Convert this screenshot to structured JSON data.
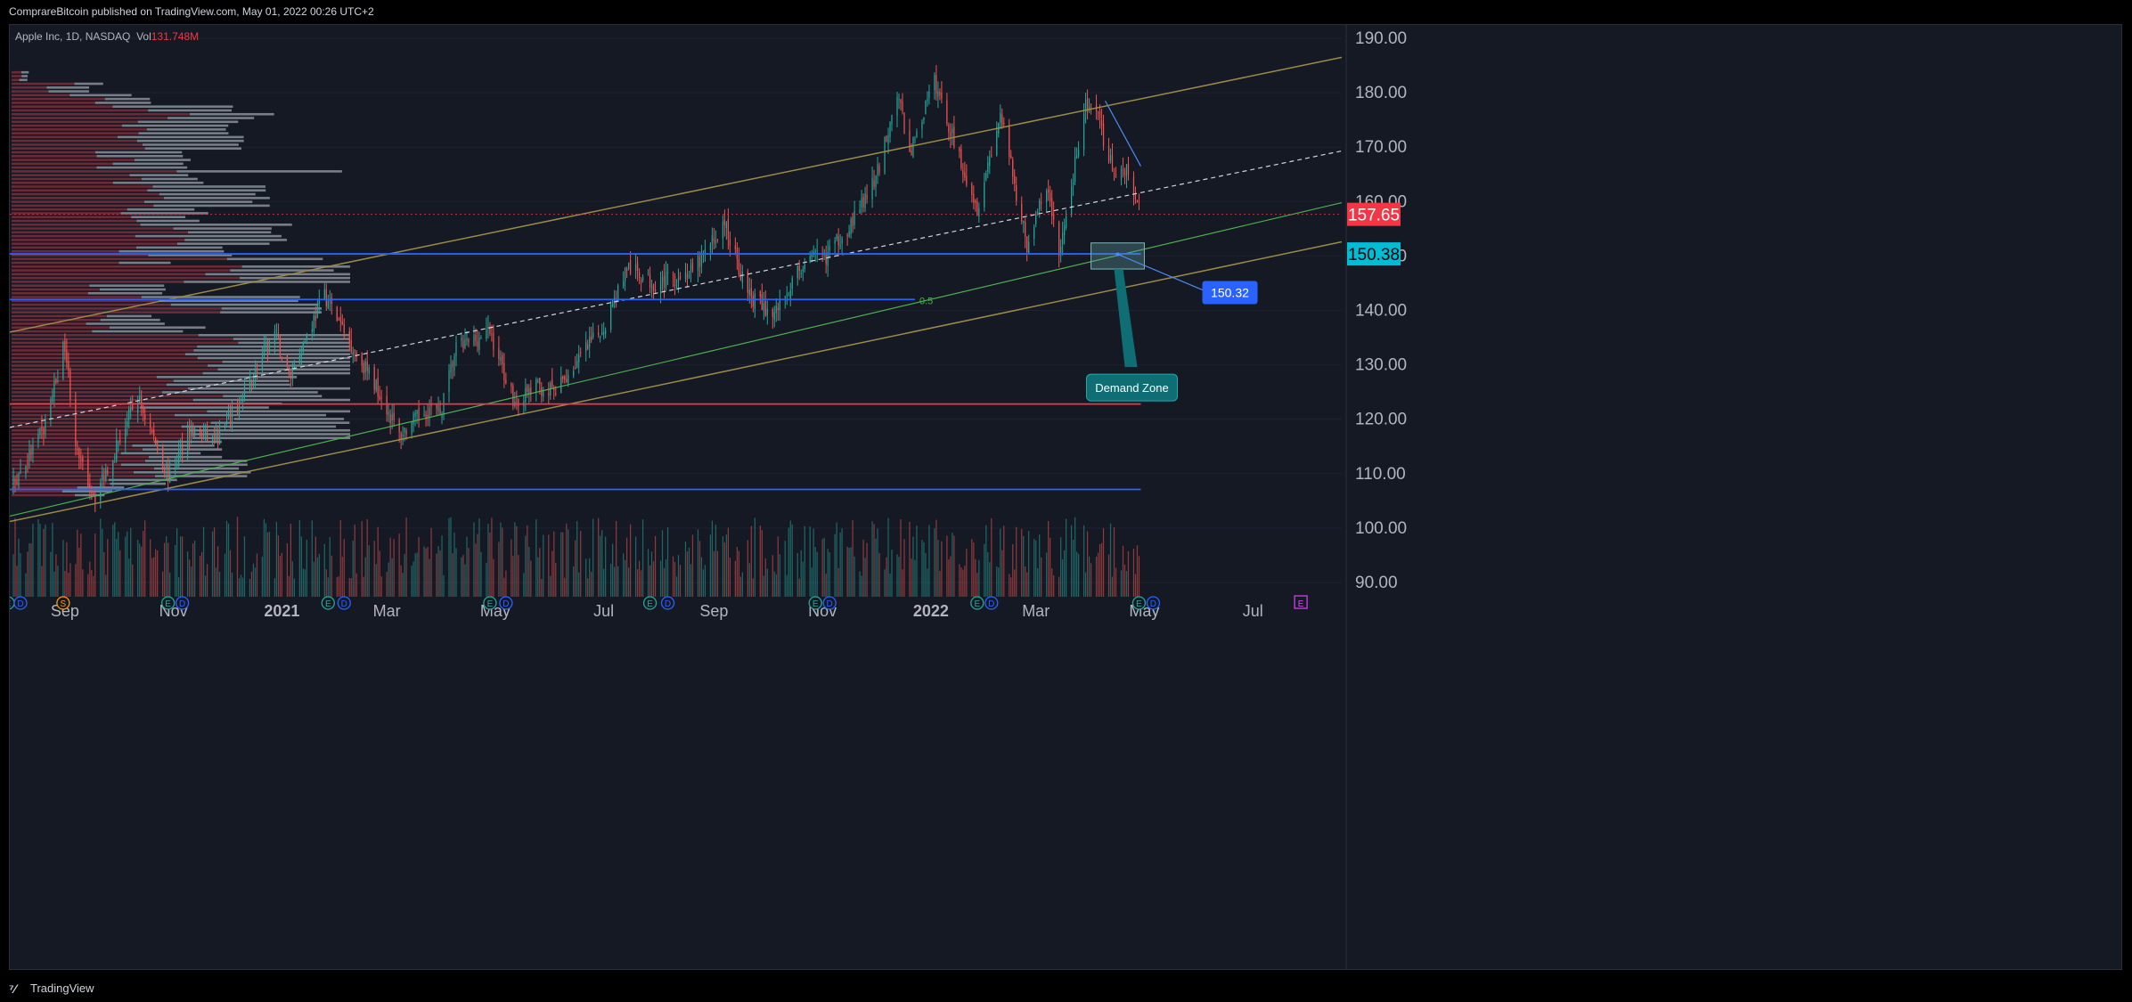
{
  "header": {
    "attribution": "ComprareBitcoin published on TradingView.com, May 01, 2022 00:26 UTC+2"
  },
  "legend": {
    "symbol": "Apple Inc, 1D, NASDAQ",
    "volume_label": "Vol",
    "volume_value": "131.748M"
  },
  "footer": {
    "brand": "TradingView"
  },
  "colors": {
    "background": "#151924",
    "up": "#26a69a",
    "down": "#ef5350",
    "channel": "#9b8a4a",
    "support": "#2962ff",
    "resistance_red": "#f23645",
    "fib_green": "#4caf50",
    "zone": "#5f9ea0",
    "price_label": "#f23645",
    "level_label": "#00bcd4"
  },
  "chart_data": {
    "type": "candlestick",
    "symbol": "Apple Inc",
    "interval": "1D",
    "exchange": "NASDAQ",
    "y_axis": {
      "side": "right",
      "min": 85,
      "max": 193,
      "ticks": [
        "190.00",
        "180.00",
        "170.00",
        "160.00",
        "150.00",
        "140.00",
        "130.00",
        "120.00",
        "110.00",
        "100.00",
        "90.00"
      ],
      "tick_values": [
        190,
        180,
        170,
        160,
        150,
        140,
        130,
        120,
        110,
        100,
        90
      ]
    },
    "x_axis": {
      "start": "2020-08-01",
      "end": "2022-08-20",
      "ticks": [
        {
          "label": "Sep",
          "date": "2020-09-01"
        },
        {
          "label": "Nov",
          "date": "2020-11-01"
        },
        {
          "label": "2021",
          "date": "2021-01-01"
        },
        {
          "label": "Mar",
          "date": "2021-03-01"
        },
        {
          "label": "May",
          "date": "2021-05-01"
        },
        {
          "label": "Jul",
          "date": "2021-07-01"
        },
        {
          "label": "Sep",
          "date": "2021-09-01"
        },
        {
          "label": "Nov",
          "date": "2021-11-01"
        },
        {
          "label": "2022",
          "date": "2022-01-01"
        },
        {
          "label": "Mar",
          "date": "2022-03-01"
        },
        {
          "label": "May",
          "date": "2022-05-01"
        },
        {
          "label": "Jul",
          "date": "2022-07-01"
        }
      ]
    },
    "price_path": [
      [
        "2020-08-03",
        108
      ],
      [
        "2020-08-20",
        118
      ],
      [
        "2020-09-01",
        134
      ],
      [
        "2020-09-08",
        113
      ],
      [
        "2020-09-18",
        106
      ],
      [
        "2020-10-01",
        116
      ],
      [
        "2020-10-12",
        124
      ],
      [
        "2020-10-30",
        109
      ],
      [
        "2020-11-09",
        118
      ],
      [
        "2020-11-25",
        116
      ],
      [
        "2020-12-10",
        124
      ],
      [
        "2020-12-28",
        136
      ],
      [
        "2021-01-05",
        128
      ],
      [
        "2021-01-25",
        143
      ],
      [
        "2021-02-05",
        136
      ],
      [
        "2021-02-25",
        125
      ],
      [
        "2021-03-08",
        117
      ],
      [
        "2021-03-24",
        122
      ],
      [
        "2021-03-31",
        121
      ],
      [
        "2021-04-09",
        133
      ],
      [
        "2021-04-28",
        136
      ],
      [
        "2021-05-12",
        123
      ],
      [
        "2021-05-24",
        126
      ],
      [
        "2021-06-04",
        125
      ],
      [
        "2021-06-17",
        131
      ],
      [
        "2021-07-01",
        137
      ],
      [
        "2021-07-14",
        148
      ],
      [
        "2021-07-29",
        145
      ],
      [
        "2021-08-10",
        146
      ],
      [
        "2021-08-20",
        147
      ],
      [
        "2021-09-07",
        156
      ],
      [
        "2021-09-20",
        143
      ],
      [
        "2021-10-04",
        139
      ],
      [
        "2021-10-22",
        149
      ],
      [
        "2021-11-03",
        150
      ],
      [
        "2021-11-19",
        157
      ],
      [
        "2021-12-01",
        164
      ],
      [
        "2021-12-13",
        180
      ],
      [
        "2021-12-20",
        169
      ],
      [
        "2022-01-03",
        182
      ],
      [
        "2022-01-13",
        172
      ],
      [
        "2022-01-27",
        159
      ],
      [
        "2022-02-09",
        176
      ],
      [
        "2022-02-24",
        152
      ],
      [
        "2022-03-07",
        163
      ],
      [
        "2022-03-14",
        150
      ],
      [
        "2022-03-29",
        178
      ],
      [
        "2022-04-05",
        175
      ],
      [
        "2022-04-14",
        165
      ],
      [
        "2022-04-21",
        166
      ],
      [
        "2022-04-29",
        157.65
      ]
    ],
    "volume_label": "Vol",
    "last_volume": "131.748M",
    "last_price": 157.65,
    "price_labels": [
      "157.65",
      "150.38",
      "150.32"
    ],
    "annotations": [
      {
        "type": "channel_line",
        "name": "upper channel",
        "start": {
          "date": "2020-08-01",
          "value": 136
        },
        "end": {
          "date": "2022-08-20",
          "value": 186.5
        }
      },
      {
        "type": "channel_line",
        "name": "midline",
        "style": "dashed",
        "start": {
          "date": "2020-08-01",
          "value": 118.5
        },
        "end": {
          "date": "2022-08-20",
          "value": 169.3
        }
      },
      {
        "type": "channel_line",
        "name": "lower channel",
        "start": {
          "date": "2020-08-01",
          "value": 101.2
        },
        "end": {
          "date": "2022-08-20",
          "value": 152.6
        }
      },
      {
        "type": "trend_line",
        "name": "green 0.5",
        "start": {
          "date": "2020-08-01",
          "value": 102.2
        },
        "end": {
          "date": "2022-08-20",
          "value": 159.8
        }
      },
      {
        "type": "horizontal",
        "value": 150.38,
        "color": "#2962ff",
        "start": "2020-08-01",
        "end": "2022-04-29",
        "label": "150.38"
      },
      {
        "type": "horizontal",
        "value": 142,
        "color": "#2962ff",
        "start": "2020-08-01",
        "end": "2021-12-23",
        "label": "0.5"
      },
      {
        "type": "horizontal",
        "value": 122.8,
        "color": "#f23645",
        "start": "2020-08-01",
        "end": "2022-04-29"
      },
      {
        "type": "horizontal",
        "value": 107.1,
        "color": "#2962ff",
        "start": "2020-08-01",
        "end": "2022-04-29"
      },
      {
        "type": "horizontal",
        "value": 157.65,
        "color": "#f23645",
        "style": "dotted",
        "start": "2020-08-01",
        "end": "2022-08-20"
      },
      {
        "type": "zone",
        "name": "Demand Zone",
        "label": "Demand Zone",
        "date_from": "2022-04-01",
        "date_to": "2022-05-01",
        "value_from": 147.6,
        "value_to": 152.4
      },
      {
        "type": "price_note",
        "value": 150.32,
        "label": "150.32"
      },
      {
        "type": "descending_line",
        "start": {
          "date": "2022-04-09",
          "value": 178.5
        },
        "end": {
          "date": "2022-04-29",
          "value": 166.5
        }
      }
    ],
    "fib_label": "0.5",
    "events": [
      {
        "date": "2020-07-31",
        "type": "E"
      },
      {
        "date": "2020-08-07",
        "type": "D"
      },
      {
        "date": "2020-08-31",
        "type": "S"
      },
      {
        "date": "2020-10-29",
        "type": "E"
      },
      {
        "date": "2020-11-06",
        "type": "D"
      },
      {
        "date": "2021-01-27",
        "type": "E"
      },
      {
        "date": "2021-02-05",
        "type": "D"
      },
      {
        "date": "2021-04-28",
        "type": "E"
      },
      {
        "date": "2021-05-07",
        "type": "D"
      },
      {
        "date": "2021-07-27",
        "type": "E"
      },
      {
        "date": "2021-08-06",
        "type": "D"
      },
      {
        "date": "2021-10-28",
        "type": "E"
      },
      {
        "date": "2021-11-05",
        "type": "D"
      },
      {
        "date": "2022-01-27",
        "type": "E"
      },
      {
        "date": "2022-02-04",
        "type": "D"
      },
      {
        "date": "2022-04-28",
        "type": "E"
      },
      {
        "date": "2022-05-06",
        "type": "D"
      },
      {
        "date": "2022-07-28",
        "type": "E",
        "upcoming": true
      }
    ]
  }
}
